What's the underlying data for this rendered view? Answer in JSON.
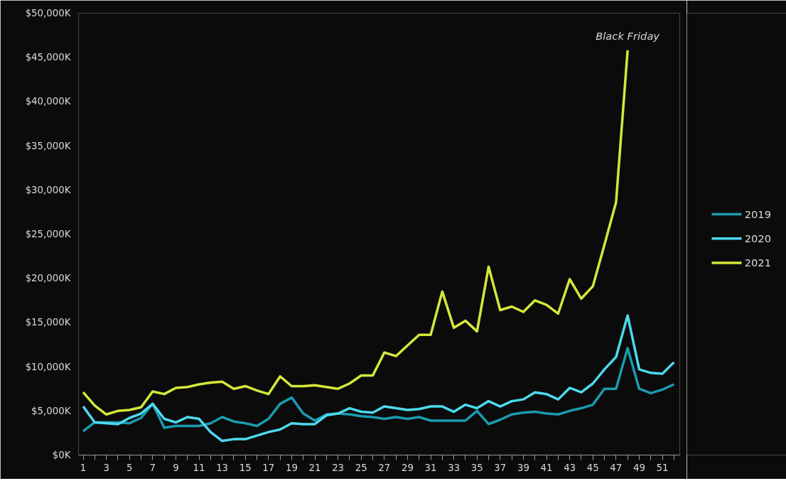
{
  "chart_data": {
    "type": "line",
    "x": [
      1,
      2,
      3,
      4,
      5,
      6,
      7,
      8,
      9,
      10,
      11,
      12,
      13,
      14,
      15,
      16,
      17,
      18,
      19,
      20,
      21,
      22,
      23,
      24,
      25,
      26,
      27,
      28,
      29,
      30,
      31,
      32,
      33,
      34,
      35,
      36,
      37,
      38,
      39,
      40,
      41,
      42,
      43,
      44,
      45,
      46,
      47,
      48,
      49,
      50,
      51,
      52
    ],
    "series": [
      {
        "name": "2019",
        "color": "#1a9bb0",
        "values": [
          2700,
          3700,
          3700,
          3700,
          3600,
          4200,
          5800,
          3100,
          3300,
          3300,
          3300,
          3600,
          4300,
          3800,
          3600,
          3300,
          4100,
          5800,
          6500,
          4700,
          3900,
          4600,
          4700,
          4600,
          4400,
          4300,
          4100,
          4300,
          4100,
          4300,
          3900,
          3900,
          3900,
          3900,
          5000,
          3500,
          4000,
          4600,
          4800,
          4900,
          4700,
          4600,
          5000,
          5300,
          5700,
          7500,
          7500,
          12100,
          7500,
          7000,
          7400,
          8000
        ]
      },
      {
        "name": "2020",
        "color": "#4dd9ee",
        "values": [
          5500,
          3700,
          3600,
          3500,
          4200,
          4700,
          5800,
          4100,
          3700,
          4300,
          4100,
          2600,
          1600,
          1800,
          1800,
          2200,
          2600,
          2900,
          3600,
          3500,
          3500,
          4500,
          4700,
          5300,
          4900,
          4800,
          5500,
          5300,
          5100,
          5200,
          5500,
          5500,
          4900,
          5700,
          5300,
          6100,
          5500,
          6100,
          6300,
          7100,
          6900,
          6300,
          7600,
          7100,
          8100,
          9700,
          11100,
          15800,
          9700,
          9300,
          9200,
          10500
        ]
      },
      {
        "name": "2021",
        "color": "#d4e83a",
        "values": [
          7100,
          5600,
          4600,
          5000,
          5100,
          5400,
          7200,
          6900,
          7600,
          7700,
          8000,
          8200,
          8300,
          7500,
          7800,
          7300,
          6900,
          8900,
          7800,
          7800,
          7900,
          7700,
          7500,
          8100,
          9000,
          9000,
          11600,
          11200,
          12400,
          13600,
          13600,
          18500,
          14400,
          15200,
          14000,
          21300,
          16400,
          16800,
          16200,
          17500,
          17000,
          16000,
          19900,
          17700,
          19100,
          23800,
          28600,
          45800,
          null,
          null,
          null,
          null
        ]
      }
    ],
    "xlim": [
      0.6,
      52.5
    ],
    "xticks": [
      1,
      {
        "value": 2,
        "label": null
      },
      3,
      {
        "value": 4,
        "label": null
      },
      5,
      {
        "value": 6,
        "label": null
      },
      7,
      {
        "value": 8,
        "label": null
      },
      9,
      {
        "value": 10,
        "label": null
      },
      11,
      {
        "value": 12,
        "label": null
      },
      13,
      {
        "value": 14,
        "label": null
      },
      15,
      {
        "value": 16,
        "label": null
      },
      17,
      {
        "value": 18,
        "label": null
      },
      19,
      {
        "value": 20,
        "label": null
      },
      21,
      {
        "value": 22,
        "label": null
      },
      23,
      {
        "value": 24,
        "label": null
      },
      25,
      {
        "value": 26,
        "label": null
      },
      27,
      {
        "value": 28,
        "label": null
      },
      29,
      {
        "value": 30,
        "label": null
      },
      31,
      {
        "value": 32,
        "label": null
      },
      33,
      {
        "value": 34,
        "label": null
      },
      35,
      {
        "value": 36,
        "label": null
      },
      37,
      {
        "value": 38,
        "label": null
      },
      39,
      {
        "value": 40,
        "label": null
      },
      41,
      {
        "value": 42,
        "label": null
      },
      43,
      {
        "value": 44,
        "label": null
      },
      45,
      {
        "value": 46,
        "label": null
      },
      47,
      {
        "value": 48,
        "label": null
      },
      49,
      {
        "value": 50,
        "label": null
      },
      51,
      {
        "value": 52,
        "label": null
      }
    ],
    "ylim": [
      0,
      50000
    ],
    "yticks": [
      {
        "value": 0,
        "label": "$0K"
      },
      {
        "value": 5000,
        "label": "$5,000K"
      },
      {
        "value": 10000,
        "label": "$10,000K"
      },
      {
        "value": 15000,
        "label": "$15,000K"
      },
      {
        "value": 20000,
        "label": "$20,000K"
      },
      {
        "value": 25000,
        "label": "$25,000K"
      },
      {
        "value": 30000,
        "label": "$30,000K"
      },
      {
        "value": 35000,
        "label": "$35,000K"
      },
      {
        "value": 40000,
        "label": "$40,000K"
      },
      {
        "value": 45000,
        "label": "$45,000K"
      },
      {
        "value": 50000,
        "label": "$50,000K"
      }
    ],
    "annotations": [
      {
        "text": "Black Friday",
        "x": 48,
        "y": 45800
      }
    ],
    "grid": false,
    "legend": "right"
  }
}
